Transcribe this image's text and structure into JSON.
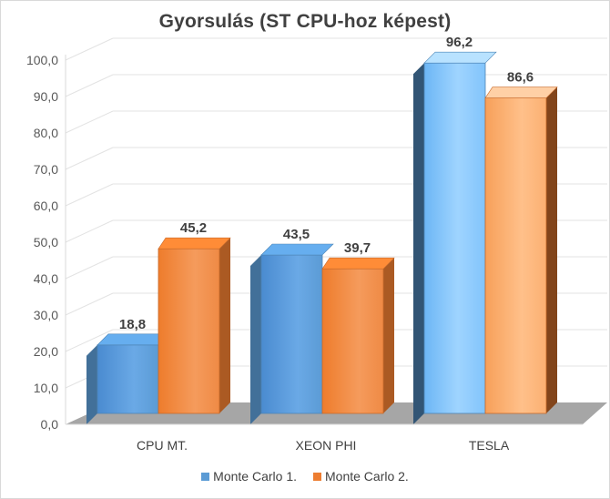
{
  "chart_data": {
    "type": "bar",
    "title": "Gyorsulás (ST CPU-hoz képest)",
    "categories": [
      "CPU MT.",
      "XEON PHI",
      "TESLA"
    ],
    "series": [
      {
        "name": "Monte Carlo 1.",
        "values": [
          18.8,
          43.5,
          96.2
        ],
        "labels": [
          "18,8",
          "43,5",
          "96,2"
        ],
        "color": "#5b9bd5"
      },
      {
        "name": "Monte Carlo 2.",
        "values": [
          45.2,
          39.7,
          86.6
        ],
        "labels": [
          "45,2",
          "39,7",
          "86,6"
        ],
        "color": "#ed7d31"
      }
    ],
    "yticks": [
      "0,0",
      "10,0",
      "20,0",
      "30,0",
      "40,0",
      "50,0",
      "60,0",
      "70,0",
      "80,0",
      "90,0",
      "100,0"
    ],
    "ylim": [
      0,
      100
    ],
    "xlabel": "",
    "ylabel": "",
    "legend_position": "bottom",
    "style": "3d-clustered-column"
  }
}
